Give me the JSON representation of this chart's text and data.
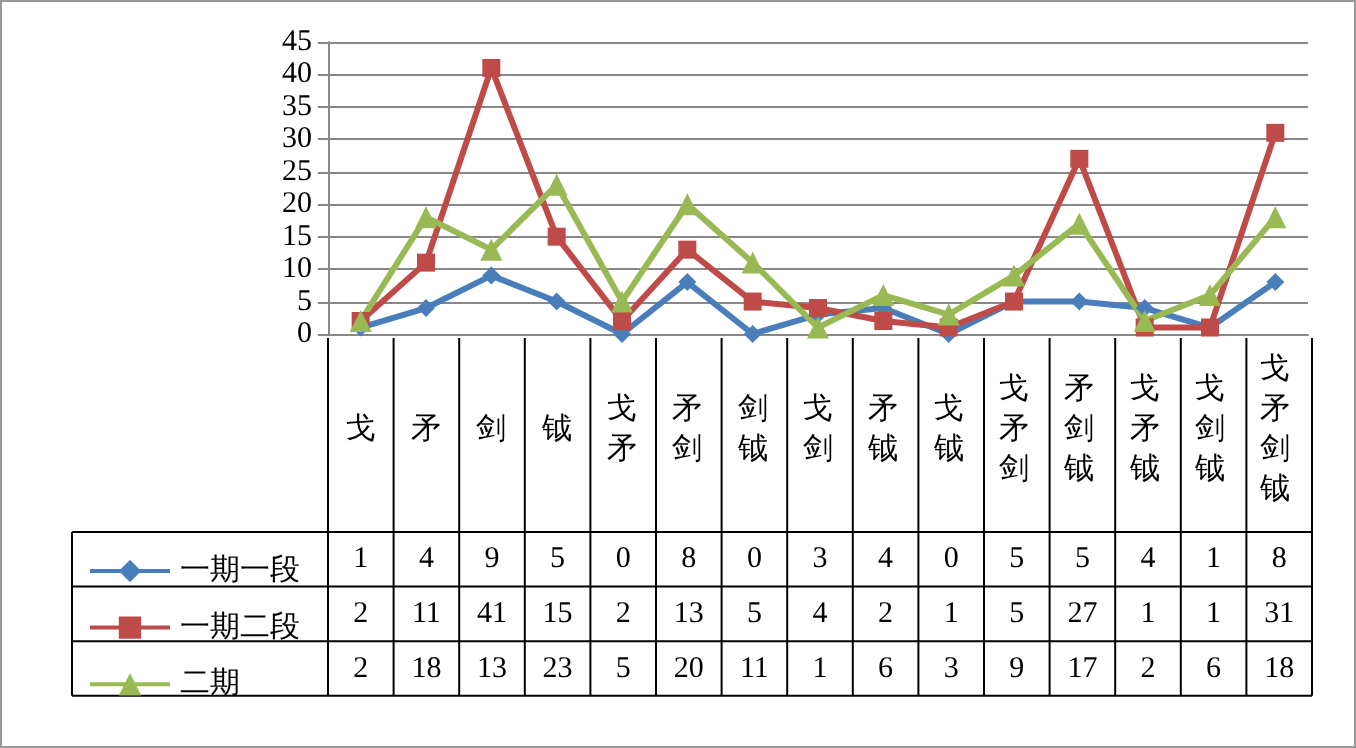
{
  "chart_data": {
    "type": "line",
    "categories": [
      "戈",
      "矛",
      "剑",
      "钺",
      "戈矛",
      "矛剑",
      "剑钺",
      "戈剑",
      "矛钺",
      "戈钺",
      "戈矛剑",
      "矛剑钺",
      "戈矛钺",
      "戈剑钺",
      "戈矛剑钺"
    ],
    "series": [
      {
        "name": "一期一段",
        "color": "#4a7ebb",
        "marker": "diamond",
        "values": [
          1,
          4,
          9,
          5,
          0,
          8,
          0,
          3,
          4,
          0,
          5,
          5,
          4,
          1,
          8
        ]
      },
      {
        "name": "一期二段",
        "color": "#be4b48",
        "marker": "square",
        "values": [
          2,
          11,
          41,
          15,
          2,
          13,
          5,
          4,
          2,
          1,
          5,
          27,
          1,
          1,
          31
        ]
      },
      {
        "name": "二期",
        "color": "#98b954",
        "marker": "triangle",
        "values": [
          2,
          18,
          13,
          23,
          5,
          20,
          11,
          1,
          6,
          3,
          9,
          17,
          2,
          6,
          18
        ]
      }
    ],
    "ylim": [
      0,
      45
    ],
    "yticks": [
      0,
      5,
      10,
      15,
      20,
      25,
      30,
      35,
      40,
      45
    ],
    "grid": "y",
    "legend": "bottom left",
    "data_labels": true,
    "line_style": "solid"
  }
}
